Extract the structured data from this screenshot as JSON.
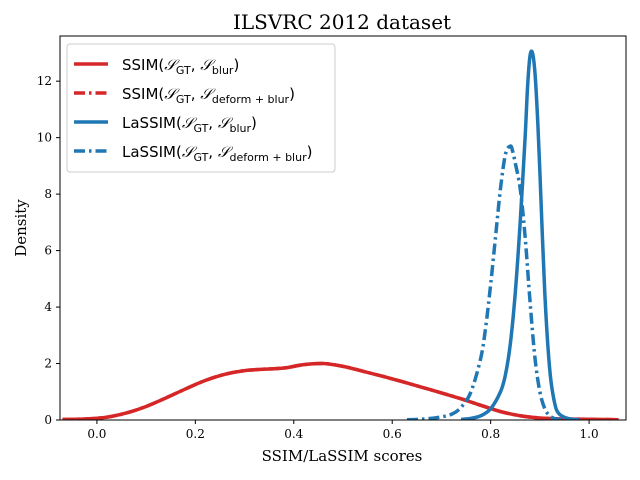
{
  "chart_data": {
    "type": "line",
    "title": "ILSVRC 2012 dataset",
    "xlabel": "SSIM/LaSSIM scores",
    "ylabel": "Density",
    "xlim": [
      -0.075,
      1.075
    ],
    "ylim": [
      0,
      13.6
    ],
    "xticks": [
      0.0,
      0.2,
      0.4,
      0.6,
      0.8,
      1.0
    ],
    "xtick_labels": [
      "0.0",
      "0.2",
      "0.4",
      "0.6",
      "0.8",
      "1.0"
    ],
    "yticks": [
      0,
      2,
      4,
      6,
      8,
      10,
      12
    ],
    "ytick_labels": [
      "0",
      "2",
      "4",
      "6",
      "8",
      "10",
      "12"
    ],
    "grid": false,
    "legend_position": "top-left",
    "series": [
      {
        "name": "SSIM(𝒮GT, 𝒮blur)",
        "legend": {
          "base": "SSIM(",
          "s1": "GT",
          "s2": "blur"
        },
        "color": "#d62728",
        "dash": "solid",
        "x": [
          -0.07,
          -0.02,
          0.02,
          0.06,
          0.1,
          0.14,
          0.18,
          0.22,
          0.26,
          0.3,
          0.34,
          0.38,
          0.42,
          0.46,
          0.5,
          0.54,
          0.58,
          0.62,
          0.66,
          0.7,
          0.74,
          0.78,
          0.82,
          0.86,
          0.9,
          0.94,
          0.98,
          1.02,
          1.06
        ],
        "y": [
          0.02,
          0.04,
          0.1,
          0.25,
          0.48,
          0.78,
          1.1,
          1.4,
          1.62,
          1.75,
          1.8,
          1.84,
          1.96,
          2.0,
          1.9,
          1.73,
          1.55,
          1.36,
          1.16,
          0.96,
          0.75,
          0.52,
          0.3,
          0.15,
          0.07,
          0.04,
          0.03,
          0.02,
          0.01
        ]
      },
      {
        "name": "SSIM(𝒮GT, 𝒮deform+blur)",
        "legend": {
          "base": "SSIM(",
          "s1": "GT",
          "s2": "deform + blur"
        },
        "color": "#d62728",
        "dash": "dashdot",
        "x": [
          -0.07,
          -0.02,
          0.02,
          0.06,
          0.1,
          0.14,
          0.18,
          0.22,
          0.26,
          0.3,
          0.34,
          0.38,
          0.42,
          0.46,
          0.5,
          0.54,
          0.58,
          0.62,
          0.66,
          0.7,
          0.74,
          0.78,
          0.82,
          0.86,
          0.9,
          0.94,
          0.98,
          1.02,
          1.06
        ],
        "y": [
          0.02,
          0.04,
          0.1,
          0.25,
          0.48,
          0.78,
          1.1,
          1.4,
          1.62,
          1.75,
          1.8,
          1.84,
          1.96,
          2.0,
          1.9,
          1.73,
          1.55,
          1.36,
          1.16,
          0.96,
          0.75,
          0.52,
          0.3,
          0.15,
          0.07,
          0.04,
          0.03,
          0.02,
          0.01
        ]
      },
      {
        "name": "LaSSIM(𝒮GT, 𝒮blur)",
        "legend": {
          "base": "LaSSIM(",
          "s1": "GT",
          "s2": "blur"
        },
        "color": "#1f77b4",
        "dash": "solid",
        "x": [
          0.74,
          0.76,
          0.78,
          0.8,
          0.82,
          0.83,
          0.84,
          0.85,
          0.86,
          0.87,
          0.875,
          0.88,
          0.885,
          0.89,
          0.895,
          0.9,
          0.91,
          0.92,
          0.93,
          0.94,
          0.96,
          0.98
        ],
        "y": [
          0.02,
          0.06,
          0.15,
          0.4,
          1.0,
          1.6,
          2.7,
          4.5,
          7.0,
          10.0,
          11.8,
          12.9,
          13.0,
          12.3,
          10.8,
          8.8,
          4.5,
          1.8,
          0.6,
          0.2,
          0.04,
          0.01
        ]
      },
      {
        "name": "LaSSIM(𝒮GT, 𝒮deform+blur)",
        "legend": {
          "base": "LaSSIM(",
          "s1": "GT",
          "s2": "deform + blur"
        },
        "color": "#1f77b4",
        "dash": "dashdot",
        "x": [
          0.63,
          0.66,
          0.69,
          0.72,
          0.74,
          0.76,
          0.78,
          0.79,
          0.8,
          0.81,
          0.82,
          0.83,
          0.84,
          0.845,
          0.85,
          0.86,
          0.87,
          0.88,
          0.89,
          0.9,
          0.91,
          0.92,
          0.93,
          0.94,
          0.96
        ],
        "y": [
          0.01,
          0.03,
          0.08,
          0.2,
          0.45,
          1.0,
          2.2,
          3.3,
          4.8,
          6.5,
          8.2,
          9.4,
          9.7,
          9.5,
          9.1,
          8.2,
          6.5,
          4.2,
          2.2,
          1.0,
          0.4,
          0.15,
          0.05,
          0.02,
          0.0
        ]
      }
    ]
  }
}
